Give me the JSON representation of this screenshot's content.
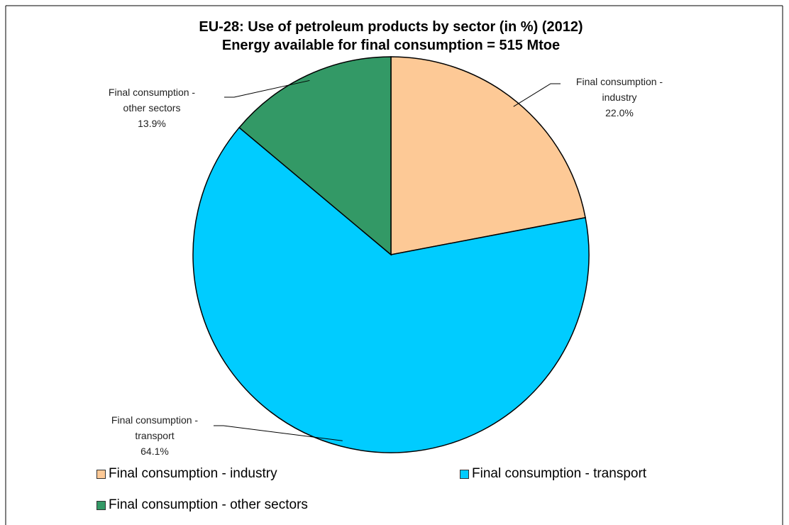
{
  "chart_data": {
    "type": "pie",
    "title": "EU-28: Use of petroleum products by sector (in %) (2012)",
    "subtitle": "Energy available for final consumption = 515 Mtoe",
    "categories": [
      "Final consumption - industry",
      "Final consumption - transport",
      "Final consumption - other sectors"
    ],
    "values": [
      22.0,
      64.1,
      13.9
    ],
    "value_labels": [
      "22.0%",
      "64.1%",
      "13.9%"
    ],
    "colors": [
      "#fdc996",
      "#00ccff",
      "#339966"
    ],
    "legend": "bottom"
  }
}
